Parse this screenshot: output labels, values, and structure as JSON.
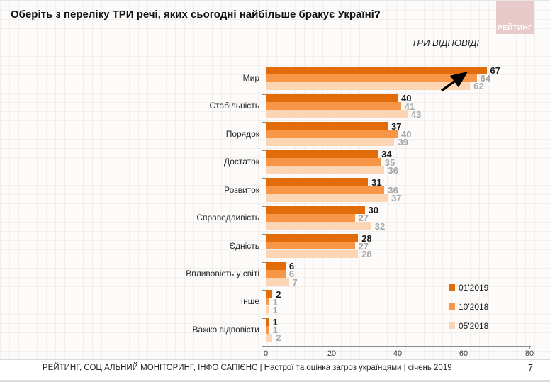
{
  "page": {
    "title": "Оберіть з переліку ТРИ речі, яких сьогодні найбільше бракує Україні?",
    "subtitle": "ТРИ ВІДПОВІДІ",
    "logo_text": "РЕЙТИНГ",
    "footer": "РЕЙТИНГ, СОЦІАЛЬНИЙ МОНІТОРИНГ, ІНФО САПІЄНС | Настрої та оцінка загроз українцями | січень 2019",
    "page_number": "7"
  },
  "colors": {
    "series1": "#e36c0a",
    "series2": "#f79646",
    "series3": "#fcd5b4",
    "value_label_primary": "#1a1a1a",
    "value_label_secondary": "#a6a6a6",
    "axis": "#8c8c8c",
    "logo_bg": "#e9caca",
    "arrow": "#000000"
  },
  "chart_data": {
    "type": "bar",
    "orientation": "horizontal",
    "title": "Оберіть з переліку ТРИ речі, яких сьогодні найбільше бракує Україні?",
    "subtitle": "ТРИ ВІДПОВІДІ",
    "categories": [
      "Мир",
      "Стабільність",
      "Порядок",
      "Достаток",
      "Розвиток",
      "Справедливість",
      "Єдність",
      "Впливовість у світі",
      "Інше",
      "Важко відповісти"
    ],
    "series": [
      {
        "name": "01'2019",
        "color": "#e36c0a",
        "values": [
          67,
          40,
          37,
          34,
          31,
          30,
          28,
          6,
          2,
          1
        ]
      },
      {
        "name": "10'2018",
        "color": "#f79646",
        "values": [
          64,
          41,
          40,
          35,
          36,
          27,
          27,
          6,
          1,
          1
        ]
      },
      {
        "name": "05'2018",
        "color": "#fcd5b4",
        "values": [
          62,
          43,
          39,
          36,
          37,
          32,
          28,
          7,
          1,
          2
        ]
      }
    ],
    "xlim": [
      0,
      80
    ],
    "x_ticks": [
      0,
      20,
      40,
      60,
      80
    ],
    "grid": false,
    "legend_position": "right-lower",
    "annotation": "arrow pointing to top value 67 of category Мир"
  }
}
